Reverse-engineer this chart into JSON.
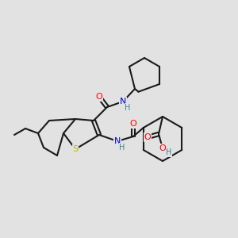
{
  "background_color": "#e2e2e2",
  "bond_color": "#1a1a1a",
  "bond_width": 1.5,
  "atom_colors": {
    "O": "#ff0000",
    "N": "#0000cd",
    "S": "#b8b800",
    "H": "#2e8b8b"
  },
  "figsize": [
    3.0,
    3.0
  ],
  "dpi": 100
}
